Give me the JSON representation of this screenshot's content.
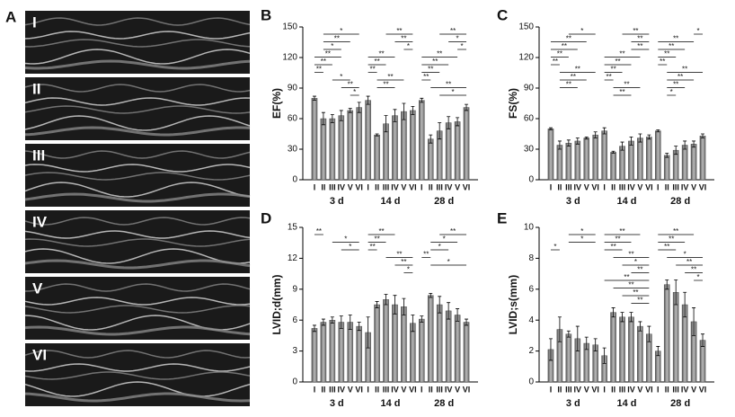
{
  "panel_a": {
    "label": "A",
    "views": [
      "I",
      "II",
      "III",
      "IV",
      "V",
      "VI"
    ]
  },
  "chart_data": [
    {
      "type": "bar",
      "panel": "B",
      "ylabel": "EF(%)",
      "ylim": [
        0,
        150
      ],
      "yticks": [
        0,
        30,
        60,
        90,
        120,
        150
      ],
      "categories": [
        "I",
        "II",
        "III",
        "IV",
        "V",
        "VI"
      ],
      "groups": [
        {
          "name": "3 d",
          "values": [
            80,
            60,
            60,
            63,
            68,
            71
          ],
          "errors": [
            2,
            6,
            4,
            5,
            2,
            5
          ],
          "sig": [
            [
              1,
              5,
              "*"
            ],
            [
              1,
              4,
              "**"
            ],
            [
              1,
              3,
              "*"
            ],
            [
              0,
              3,
              "**"
            ],
            [
              0,
              2,
              "**"
            ],
            [
              0,
              1,
              "**"
            ],
            [
              2,
              4,
              "*"
            ],
            [
              3,
              5,
              "**"
            ],
            [
              4,
              5,
              "*"
            ]
          ]
        },
        {
          "name": "14 d",
          "values": [
            78,
            44,
            55,
            63,
            67,
            68
          ],
          "errors": [
            4,
            1,
            8,
            6,
            8,
            4
          ],
          "sig": [
            [
              2,
              5,
              "**"
            ],
            [
              3,
              5,
              "**"
            ],
            [
              4,
              5,
              "*"
            ],
            [
              0,
              3,
              "**"
            ],
            [
              0,
              2,
              "**"
            ],
            [
              0,
              1,
              "**"
            ],
            [
              1,
              4,
              "**"
            ],
            [
              1,
              3,
              "**"
            ]
          ]
        },
        {
          "name": "28 d",
          "values": [
            78,
            40,
            48,
            56,
            57,
            71
          ],
          "errors": [
            2,
            4,
            8,
            6,
            4,
            3
          ],
          "sig": [
            [
              2,
              5,
              "**"
            ],
            [
              3,
              5,
              "*"
            ],
            [
              4,
              5,
              "*"
            ],
            [
              0,
              4,
              "**"
            ],
            [
              0,
              3,
              "**"
            ],
            [
              0,
              2,
              "**"
            ],
            [
              0,
              1,
              "**"
            ],
            [
              1,
              5,
              "**"
            ],
            [
              2,
              5,
              "*"
            ]
          ]
        }
      ]
    },
    {
      "type": "bar",
      "panel": "C",
      "ylabel": "FS(%)",
      "ylim": [
        0,
        150
      ],
      "yticks": [
        0,
        30,
        60,
        90,
        120,
        150
      ],
      "categories": [
        "I",
        "II",
        "III",
        "IV",
        "V",
        "VI"
      ],
      "groups": [
        {
          "name": "3 d",
          "values": [
            50,
            34,
            36,
            38,
            41,
            44
          ],
          "errors": [
            1,
            4,
            3,
            3,
            1,
            3
          ],
          "sig": [
            [
              2,
              5,
              "*"
            ],
            [
              0,
              4,
              "**"
            ],
            [
              0,
              3,
              "**"
            ],
            [
              0,
              2,
              "**"
            ],
            [
              0,
              1,
              "**"
            ],
            [
              1,
              5,
              "**"
            ],
            [
              1,
              4,
              "**"
            ],
            [
              1,
              3,
              "**"
            ]
          ]
        },
        {
          "name": "14 d",
          "values": [
            48,
            27,
            33,
            38,
            41,
            42
          ],
          "errors": [
            3,
            1,
            4,
            4,
            4,
            2
          ],
          "sig": [
            [
              2,
              5,
              "**"
            ],
            [
              3,
              5,
              "**"
            ],
            [
              3,
              5,
              "**"
            ],
            [
              0,
              4,
              "**"
            ],
            [
              0,
              3,
              "**"
            ],
            [
              0,
              2,
              "**"
            ],
            [
              0,
              1,
              "**"
            ],
            [
              1,
              4,
              "**"
            ],
            [
              1,
              3,
              "**"
            ]
          ]
        },
        {
          "name": "28 d",
          "values": [
            48,
            24,
            29,
            34,
            35,
            43
          ],
          "errors": [
            1,
            2,
            4,
            4,
            3,
            2
          ],
          "sig": [
            [
              4,
              5,
              "*"
            ],
            [
              0,
              4,
              "**"
            ],
            [
              0,
              3,
              "**"
            ],
            [
              0,
              2,
              "**"
            ],
            [
              0,
              1,
              "**"
            ],
            [
              1,
              5,
              "**"
            ],
            [
              1,
              4,
              "**"
            ],
            [
              1,
              3,
              "**"
            ],
            [
              1,
              2,
              "*"
            ]
          ]
        }
      ]
    },
    {
      "type": "bar",
      "panel": "D",
      "ylabel": "LVID;d(mm)",
      "ylim": [
        0,
        15
      ],
      "yticks": [
        0,
        3,
        6,
        9,
        12,
        15
      ],
      "categories": [
        "I",
        "II",
        "III",
        "IV",
        "V",
        "VI"
      ],
      "groups": [
        {
          "name": "3 d",
          "values": [
            5.2,
            5.8,
            6.0,
            5.8,
            5.8,
            5.4
          ],
          "errors": [
            0.3,
            0.3,
            0.3,
            0.6,
            0.7,
            0.4
          ],
          "sig": [
            [
              0,
              1,
              "**"
            ],
            [
              2,
              5,
              "*"
            ],
            [
              3,
              5,
              "*"
            ]
          ]
        },
        {
          "name": "14 d",
          "values": [
            4.8,
            7.5,
            8.0,
            7.5,
            7.3,
            5.7
          ],
          "errors": [
            1.5,
            0.3,
            0.5,
            0.9,
            0.8,
            0.8
          ],
          "sig": [
            [
              0,
              3,
              "**"
            ],
            [
              0,
              2,
              "**"
            ],
            [
              0,
              1,
              "**"
            ],
            [
              2,
              5,
              "**"
            ],
            [
              3,
              5,
              "**"
            ],
            [
              4,
              5,
              "*"
            ]
          ]
        },
        {
          "name": "28 d",
          "values": [
            6.1,
            8.4,
            7.5,
            6.9,
            6.5,
            5.8
          ],
          "errors": [
            0.3,
            0.2,
            0.8,
            0.8,
            0.6,
            0.3
          ],
          "sig": [
            [
              2,
              5,
              "**"
            ],
            [
              1,
              4,
              "*"
            ],
            [
              1,
              3,
              "*"
            ],
            [
              0,
              1,
              "**"
            ],
            [
              1,
              5,
              "*"
            ]
          ]
        }
      ]
    },
    {
      "type": "bar",
      "panel": "E",
      "ylabel": "LVID;s(mm)",
      "ylim": [
        0,
        10
      ],
      "yticks": [
        0,
        2,
        4,
        6,
        8,
        10
      ],
      "categories": [
        "I",
        "II",
        "III",
        "IV",
        "V",
        "VI"
      ],
      "groups": [
        {
          "name": "3 d",
          "values": [
            2.1,
            3.4,
            3.1,
            2.8,
            2.5,
            2.4
          ],
          "errors": [
            0.7,
            0.8,
            0.2,
            0.8,
            0.4,
            0.4
          ],
          "sig": [
            [
              2,
              5,
              "*"
            ],
            [
              2,
              5,
              "*"
            ],
            [
              0,
              1,
              "*"
            ]
          ]
        },
        {
          "name": "14 d",
          "values": [
            1.7,
            4.5,
            4.2,
            4.2,
            3.6,
            3.1
          ],
          "errors": [
            0.5,
            0.3,
            0.3,
            0.3,
            0.3,
            0.5
          ],
          "sig": [
            [
              0,
              4,
              "**"
            ],
            [
              0,
              3,
              "**"
            ],
            [
              0,
              2,
              "**"
            ],
            [
              1,
              5,
              "**"
            ],
            [
              2,
              5,
              "*"
            ],
            [
              3,
              5,
              "**"
            ],
            [
              0,
              5,
              "**"
            ],
            [
              1,
              5,
              "**"
            ],
            [
              2,
              5,
              "**"
            ],
            [
              3,
              5,
              "**"
            ]
          ]
        },
        {
          "name": "28 d",
          "values": [
            2.0,
            6.3,
            5.8,
            5.0,
            3.9,
            2.7
          ],
          "errors": [
            0.3,
            0.3,
            0.8,
            0.8,
            0.9,
            0.4
          ],
          "sig": [
            [
              0,
              4,
              "**"
            ],
            [
              0,
              3,
              "**"
            ],
            [
              0,
              2,
              "**"
            ],
            [
              1,
              5,
              "*"
            ],
            [
              2,
              5,
              "**"
            ],
            [
              3,
              5,
              "**"
            ],
            [
              4,
              5,
              "*"
            ]
          ]
        }
      ]
    }
  ]
}
